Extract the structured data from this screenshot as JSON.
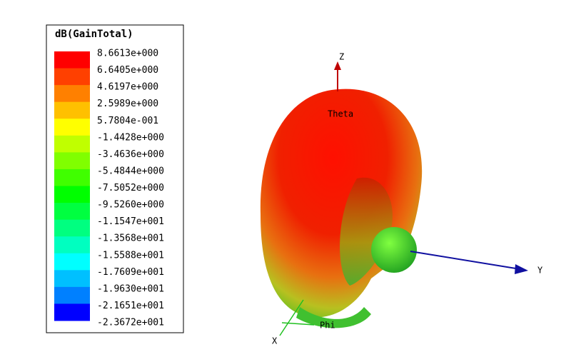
{
  "legend": {
    "title": "dB(GainTotal)",
    "labels": [
      "8.6613e+000",
      "6.6405e+000",
      "4.6197e+000",
      "2.5989e+000",
      "5.7804e-001",
      "-1.4428e+000",
      "-3.4636e+000",
      "-5.4844e+000",
      "-7.5052e+000",
      "-9.5260e+000",
      "-1.1547e+001",
      "-1.3568e+001",
      "-1.5588e+001",
      "-1.7609e+001",
      "-1.9630e+001",
      "-2.1651e+001",
      "-2.3672e+001"
    ]
  },
  "axes": {
    "z": "Z",
    "y": "Y",
    "x": "X",
    "theta": "Theta",
    "phi": "Phi"
  }
}
